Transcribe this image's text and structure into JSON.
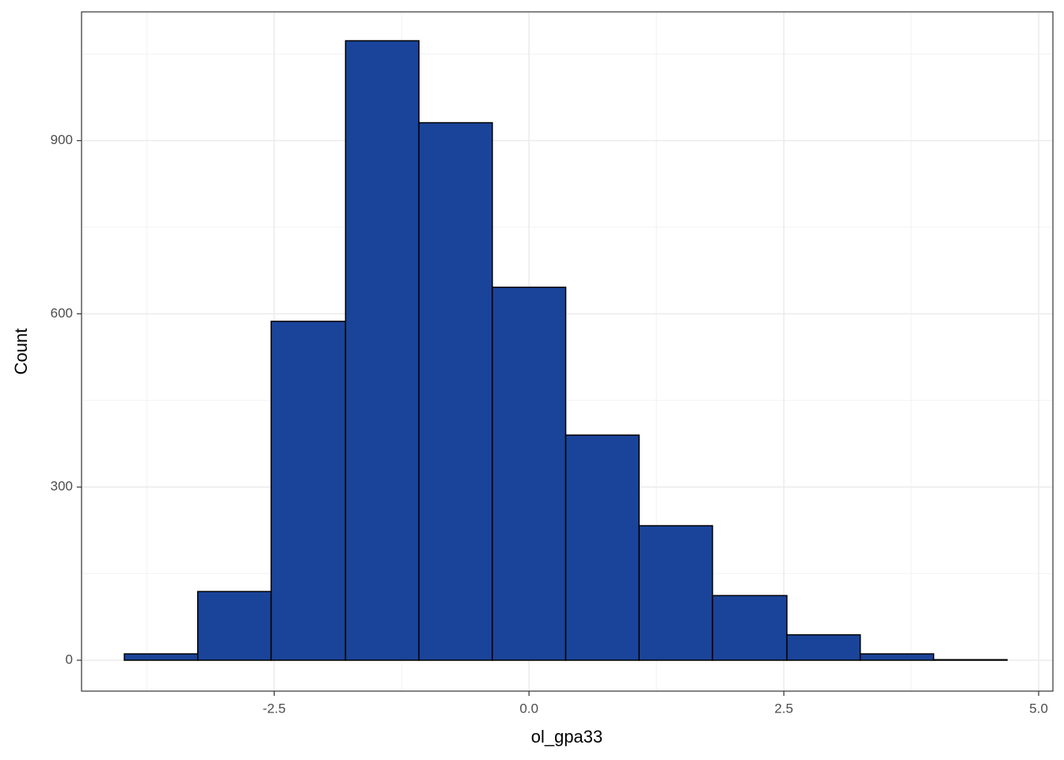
{
  "chart_data": {
    "type": "histogram",
    "xlabel": "ol_gpa33",
    "ylabel": "Count",
    "bins": [
      -3.97,
      -3.25,
      -2.53,
      -1.8,
      -1.08,
      -0.36,
      0.36,
      1.08,
      1.8,
      2.53,
      3.25,
      3.97,
      4.69
    ],
    "values": [
      11,
      119,
      587,
      1073,
      931,
      646,
      390,
      233,
      112,
      44,
      11,
      1
    ],
    "color": "#1a449a",
    "edgecolor": "#000000",
    "xlim": [
      -4.39,
      5.14
    ],
    "ylim": [
      -53.5,
      1123
    ],
    "xticks": [
      {
        "value": -2.5,
        "label": "-2.5"
      },
      {
        "value": 0,
        "label": "0.0"
      },
      {
        "value": 2.5,
        "label": "2.5"
      },
      {
        "value": 5,
        "label": "5.0"
      }
    ],
    "yticks": [
      0,
      300,
      600,
      900
    ],
    "minor_xticks": [
      -3.75,
      -1.25,
      1.25,
      3.75
    ],
    "minor_yticks": [
      150,
      450,
      750,
      1050
    ],
    "grid": true
  }
}
